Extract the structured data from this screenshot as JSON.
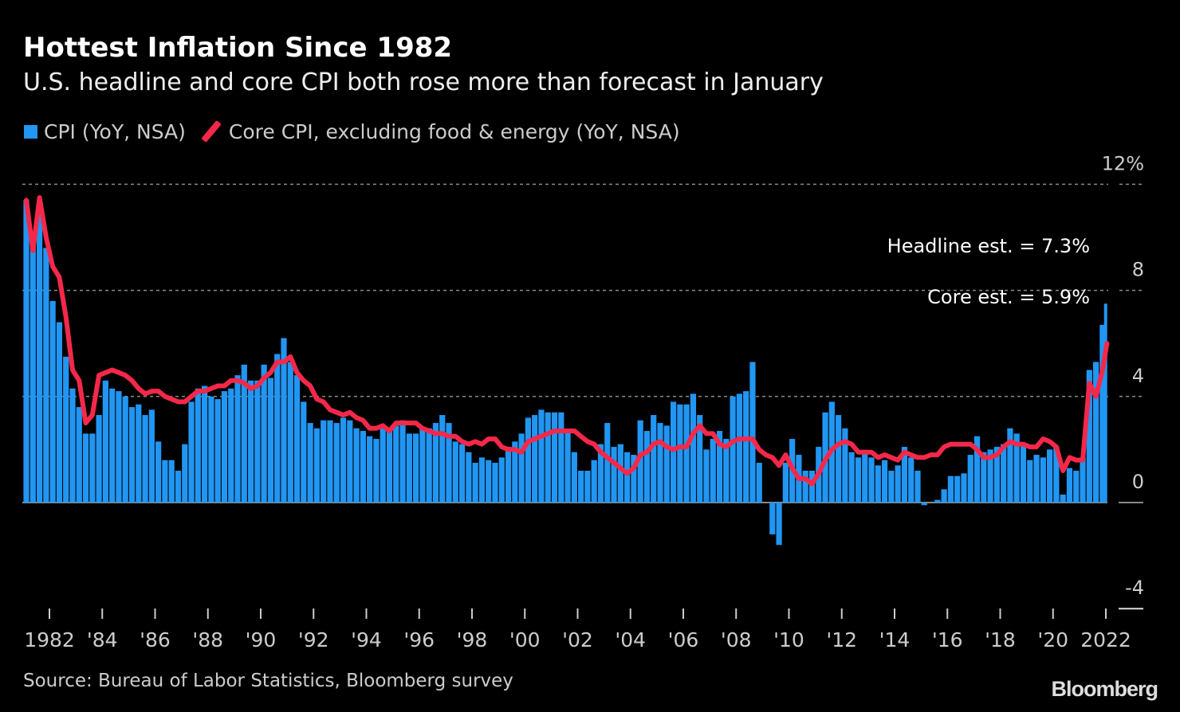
{
  "title": "Hottest Inflation Since 1982",
  "subtitle": "U.S. headline and core CPI both rose more than forecast in January",
  "legend": {
    "cpi": "CPI (YoY, NSA)",
    "core": "Core CPI, excluding food & energy (YoY, NSA)"
  },
  "source": "Source: Bureau of Labor Statistics, Bloomberg survey",
  "logo": "Bloomberg",
  "colors": {
    "cpi": "#2196f3",
    "core": "#f5284a",
    "background": "#000000"
  },
  "chart_data": {
    "type": "bar",
    "title": "Hottest Inflation Since 1982",
    "ylim": [
      -4,
      12
    ],
    "yticks": [
      {
        "value": 12,
        "label": "12%"
      },
      {
        "value": 8,
        "label": "8"
      },
      {
        "value": 4,
        "label": "4"
      },
      {
        "value": 0,
        "label": "0"
      },
      {
        "value": -4,
        "label": "-4"
      }
    ],
    "xticks": [
      {
        "year": 1982,
        "label": "1982"
      },
      {
        "year": 1984,
        "label": "'84"
      },
      {
        "year": 1986,
        "label": "'86"
      },
      {
        "year": 1988,
        "label": "'88"
      },
      {
        "year": 1990,
        "label": "'90"
      },
      {
        "year": 1992,
        "label": "'92"
      },
      {
        "year": 1994,
        "label": "'94"
      },
      {
        "year": 1996,
        "label": "'96"
      },
      {
        "year": 1998,
        "label": "'98"
      },
      {
        "year": 2000,
        "label": "'00"
      },
      {
        "year": 2002,
        "label": "'02"
      },
      {
        "year": 2004,
        "label": "'04"
      },
      {
        "year": 2006,
        "label": "'06"
      },
      {
        "year": 2008,
        "label": "'08"
      },
      {
        "year": 2010,
        "label": "'10"
      },
      {
        "year": 2012,
        "label": "'12"
      },
      {
        "year": 2014,
        "label": "'14"
      },
      {
        "year": 2016,
        "label": "'16"
      },
      {
        "year": 2018,
        "label": "'18"
      },
      {
        "year": 2020,
        "label": "'20"
      },
      {
        "year": 2022,
        "label": "2022"
      }
    ],
    "grid": "dotted horizontal",
    "legend_placement": "top-left",
    "annotations": [
      {
        "text": "Headline est. = 7.3%",
        "value": 7.3
      },
      {
        "text": "Core est. = 5.9%",
        "value": 5.9
      }
    ],
    "start": "1981-Q1",
    "frequency": "quarterly, final point January 2022",
    "series": [
      {
        "name": "CPI (YoY, NSA)",
        "type": "bar",
        "values": [
          11.4,
          9.8,
          10.9,
          9.6,
          7.6,
          6.8,
          5.5,
          4.3,
          3.6,
          2.6,
          2.6,
          3.3,
          4.6,
          4.3,
          4.2,
          4.0,
          3.6,
          3.7,
          3.3,
          3.5,
          2.3,
          1.6,
          1.6,
          1.2,
          2.2,
          3.8,
          4.3,
          4.4,
          4.0,
          3.9,
          4.2,
          4.3,
          4.8,
          5.2,
          4.6,
          4.6,
          5.2,
          4.7,
          5.6,
          6.2,
          5.3,
          4.8,
          3.8,
          3.0,
          2.8,
          3.1,
          3.1,
          3.0,
          3.2,
          3.1,
          2.8,
          2.7,
          2.5,
          2.4,
          2.9,
          2.7,
          2.9,
          3.1,
          2.6,
          2.6,
          2.8,
          2.8,
          3.0,
          3.3,
          3.0,
          2.3,
          2.2,
          1.9,
          1.5,
          1.7,
          1.6,
          1.5,
          1.7,
          2.1,
          2.3,
          2.6,
          3.2,
          3.3,
          3.5,
          3.4,
          3.4,
          3.4,
          2.7,
          1.9,
          1.2,
          1.2,
          1.6,
          2.2,
          3.0,
          2.1,
          2.2,
          1.9,
          1.8,
          3.1,
          2.7,
          3.3,
          3.0,
          2.9,
          3.8,
          3.7,
          3.7,
          4.1,
          3.3,
          2.0,
          2.4,
          2.7,
          2.4,
          4.0,
          4.1,
          4.2,
          5.3,
          1.5,
          0.0,
          -1.2,
          -1.6,
          1.5,
          2.4,
          1.8,
          1.2,
          1.2,
          2.1,
          3.4,
          3.8,
          3.3,
          2.8,
          1.9,
          1.7,
          1.9,
          1.7,
          1.4,
          1.6,
          1.2,
          1.4,
          2.1,
          1.7,
          1.2,
          -0.1,
          0.0,
          0.1,
          0.5,
          1.0,
          1.0,
          1.1,
          1.8,
          2.5,
          1.9,
          2.0,
          2.1,
          2.2,
          2.8,
          2.6,
          2.2,
          1.6,
          1.8,
          1.7,
          2.0,
          2.1,
          0.3,
          1.3,
          1.2,
          1.7,
          5.0,
          5.3,
          6.7,
          7.5
        ]
      },
      {
        "name": "Core CPI, excluding food & energy (YoY, NSA)",
        "type": "line",
        "values": [
          11.4,
          9.5,
          11.5,
          10.0,
          8.9,
          8.5,
          7.0,
          5.0,
          4.6,
          3.0,
          3.3,
          4.8,
          4.9,
          5.0,
          4.9,
          4.8,
          4.6,
          4.3,
          4.1,
          4.2,
          4.2,
          4.0,
          3.9,
          3.8,
          3.8,
          4.0,
          4.2,
          4.2,
          4.3,
          4.4,
          4.4,
          4.6,
          4.6,
          4.5,
          4.3,
          4.4,
          4.7,
          4.9,
          5.3,
          5.3,
          5.5,
          4.9,
          4.6,
          4.4,
          3.9,
          3.8,
          3.5,
          3.4,
          3.3,
          3.4,
          3.2,
          3.1,
          2.8,
          2.8,
          2.9,
          2.7,
          3.0,
          3.0,
          3.0,
          3.0,
          2.8,
          2.7,
          2.6,
          2.6,
          2.5,
          2.5,
          2.3,
          2.2,
          2.3,
          2.2,
          2.4,
          2.4,
          2.1,
          2.0,
          2.0,
          1.9,
          2.3,
          2.4,
          2.5,
          2.6,
          2.7,
          2.7,
          2.7,
          2.7,
          2.5,
          2.3,
          2.2,
          1.9,
          1.7,
          1.5,
          1.3,
          1.1,
          1.3,
          1.8,
          1.9,
          2.2,
          2.3,
          2.1,
          2.0,
          2.1,
          2.1,
          2.6,
          2.9,
          2.6,
          2.6,
          2.2,
          2.1,
          2.3,
          2.4,
          2.4,
          2.4,
          2.0,
          1.8,
          1.7,
          1.4,
          1.8,
          1.3,
          0.9,
          0.9,
          0.7,
          1.1,
          1.6,
          2.0,
          2.2,
          2.3,
          2.2,
          1.9,
          1.9,
          1.9,
          1.7,
          1.8,
          1.7,
          1.6,
          1.9,
          1.8,
          1.7,
          1.7,
          1.8,
          1.8,
          2.1,
          2.2,
          2.2,
          2.2,
          2.2,
          2.0,
          1.7,
          1.7,
          1.8,
          2.1,
          2.3,
          2.2,
          2.2,
          2.1,
          2.1,
          2.4,
          2.3,
          2.1,
          1.2,
          1.7,
          1.6,
          1.6,
          4.5,
          4.0,
          5.0,
          6.0
        ]
      }
    ]
  }
}
